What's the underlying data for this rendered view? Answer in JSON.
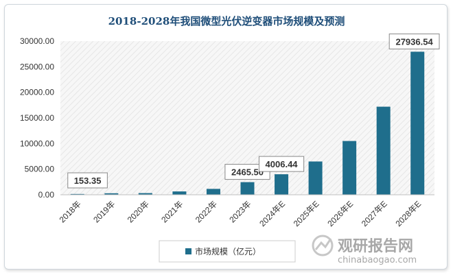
{
  "chart_data": {
    "type": "bar",
    "title": "2018-2028年我国微型光伏逆变器市场规模及预测",
    "categories": [
      "2018年",
      "2019年",
      "2020年",
      "2021年",
      "2022年",
      "2023年",
      "2024年E",
      "2025年E",
      "2026年E",
      "2027年E",
      "2028年E"
    ],
    "series": [
      {
        "name": "市场规模（亿元）",
        "values": [
          153.35,
          290,
          320,
          650,
          1150,
          2465.5,
          4006.44,
          6500,
          10500,
          17200,
          27936.54
        ]
      }
    ],
    "data_labels": [
      {
        "index": 0,
        "text": "153.35"
      },
      {
        "index": 5,
        "text": "2465.50"
      },
      {
        "index": 6,
        "text": "4006.44"
      },
      {
        "index": 10,
        "text": "27936.54"
      }
    ],
    "yticks": [
      "0.00",
      "5000.00",
      "10000.00",
      "15000.00",
      "20000.00",
      "25000.00",
      "30000.00"
    ],
    "ylim": [
      0,
      30000
    ],
    "grid": false,
    "legend": "bottom",
    "bar_color": "#1f6e8c"
  },
  "watermark": {
    "main": "观研报告网",
    "sub": "chinabaogao.com"
  }
}
